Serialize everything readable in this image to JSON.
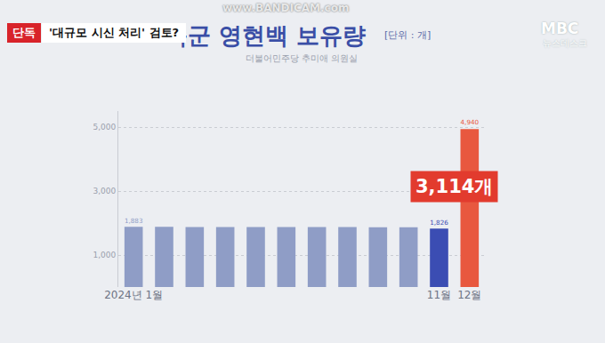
{
  "chart_data": {
    "type": "bar",
    "title": "육군 영현백 보유량",
    "subtitle": "더불어민주당 추미애 의원실",
    "annotations": [
      "[단위 : 개]",
      "3,114개"
    ],
    "categories": [
      "2024년 1월",
      null,
      null,
      null,
      null,
      null,
      null,
      null,
      null,
      null,
      "11월",
      "12월"
    ],
    "values": [
      1883,
      1880,
      1878,
      1877,
      1876,
      1875,
      1874,
      1873,
      1871,
      1870,
      1826,
      4940
    ],
    "value_labels": [
      "1,883",
      null,
      null,
      null,
      null,
      null,
      null,
      null,
      null,
      null,
      "1,826",
      "4,940"
    ],
    "data_labels": true,
    "colors": [
      "#8f9dc6",
      "#8f9dc6",
      "#8f9dc6",
      "#8f9dc6",
      "#8f9dc6",
      "#8f9dc6",
      "#8f9dc6",
      "#8f9dc6",
      "#8f9dc6",
      "#8f9dc6",
      "#3b4db3",
      "#e8583f"
    ],
    "ylim": [
      0,
      5500
    ],
    "yticks": [
      {
        "value": 1000,
        "label": "1,000"
      },
      {
        "value": 3000,
        "label": "3,000"
      },
      {
        "value": 5000,
        "label": "5,000"
      }
    ],
    "grid": true
  },
  "overlay": {
    "tag": "단독",
    "headline": "'대규모 시신 처리' 검토?",
    "logo": "MBC",
    "program": "뉴스데스크",
    "watermark": "www.BANDICAM.com"
  }
}
